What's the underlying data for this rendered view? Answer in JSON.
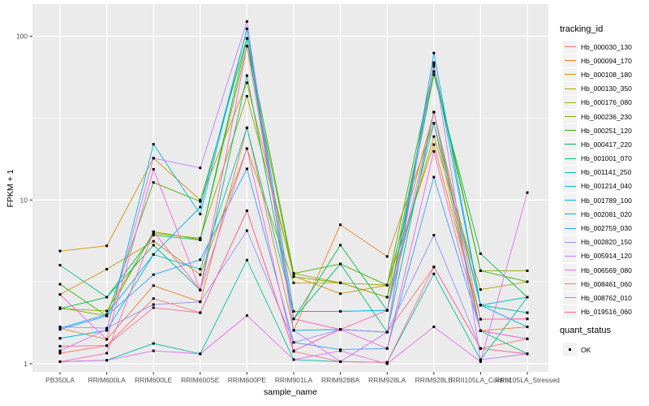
{
  "chart_data": {
    "type": "line",
    "xlabel": "sample_name",
    "ylabel": "FPKM + 1",
    "yscale": "log10",
    "yticks": [
      1,
      10,
      100
    ],
    "minor_yticks": [
      3.1623,
      31.623
    ],
    "grid": true,
    "legend_title": "tracking_id",
    "legend_position": "right",
    "panel_bg": "#EBEBEB",
    "grid_color": "#FFFFFF",
    "tick_label_color": "#4D4D4D",
    "tick_mark_color": "#333333",
    "point_color": "#000000",
    "point_shape": "square",
    "quant_status": {
      "title": "quant_status",
      "values": [
        "OK"
      ]
    },
    "x_categories": [
      "PB350LA",
      "RRIM600LA",
      "RRIM600LE",
      "RRIM600SE",
      "RRIM600PE",
      "RRIM901LA",
      "RRIM928BA",
      "RRIM928LA",
      "RRIM928LE",
      "RRII105LA_Control",
      "RRII105LA_Stressed"
    ],
    "series": [
      {
        "name": "Hb_000030_130",
        "color": "#F8766D",
        "values": [
          1.16,
          1.29,
          2.5,
          2.05,
          8.6,
          1.2,
          1.62,
          1.56,
          3.9,
          1.24,
          1.42
        ]
      },
      {
        "name": "Hb_000094_170",
        "color": "#EA8331",
        "values": [
          1.65,
          1.41,
          3.0,
          2.39,
          27.6,
          1.6,
          7.06,
          4.52,
          29.4,
          1.59,
          1.68
        ]
      },
      {
        "name": "Hb_000108_180",
        "color": "#D89000",
        "values": [
          4.88,
          5.25,
          18.0,
          10.0,
          52.0,
          3.43,
          2.68,
          3.02,
          21.8,
          1.87,
          1.88
        ]
      },
      {
        "name": "Hb_000130_350",
        "color": "#C09B00",
        "values": [
          2.65,
          3.78,
          5.6,
          3.5,
          20.6,
          3.12,
          3.12,
          2.55,
          24.4,
          2.84,
          3.17
        ]
      },
      {
        "name": "Hb_000176_080",
        "color": "#A3A500",
        "values": [
          2.17,
          2.1,
          6.25,
          5.85,
          43.0,
          3.56,
          3.12,
          3.02,
          34.4,
          2.28,
          2.05
        ]
      },
      {
        "name": "Hb_000236_230",
        "color": "#7CAE00",
        "values": [
          2.2,
          1.96,
          6.4,
          5.74,
          87.0,
          3.4,
          3.12,
          2.55,
          60.8,
          3.7,
          3.7
        ]
      },
      {
        "name": "Hb_000251_120",
        "color": "#39B600",
        "values": [
          3.06,
          1.96,
          12.8,
          9.8,
          97.0,
          3.56,
          4.07,
          3.02,
          65.5,
          3.7,
          3.17
        ]
      },
      {
        "name": "Hb_000417_220",
        "color": "#00BB4E",
        "values": [
          2.17,
          2.55,
          6.1,
          5.7,
          97.0,
          1.88,
          5.3,
          2.12,
          58.3,
          4.7,
          2.55
        ]
      },
      {
        "name": "Hb_001001_070",
        "color": "#00BF7D",
        "values": [
          4.0,
          2.55,
          5.3,
          2.82,
          57.5,
          1.88,
          4.07,
          1.56,
          34.4,
          1.59,
          1.15
        ]
      },
      {
        "name": "Hb_001141_250",
        "color": "#00C1A3",
        "values": [
          1.03,
          1.05,
          1.33,
          1.15,
          4.3,
          1.06,
          1.03,
          1.02,
          3.54,
          1.06,
          2.55
        ]
      },
      {
        "name": "Hb_001214_040",
        "color": "#00BFC4",
        "values": [
          1.43,
          1.6,
          4.65,
          3.78,
          27.6,
          2.09,
          2.09,
          2.12,
          29.4,
          2.28,
          2.55
        ]
      },
      {
        "name": "Hb_001789_100",
        "color": "#00BAE0",
        "values": [
          1.43,
          1.6,
          21.9,
          8.2,
          111.0,
          2.09,
          2.09,
          2.12,
          67.0,
          2.28,
          2.05
        ]
      },
      {
        "name": "Hb_002081_020",
        "color": "#00B0F6",
        "values": [
          1.65,
          2.0,
          4.65,
          9.05,
          111.0,
          1.6,
          1.62,
          1.56,
          79.0,
          2.28,
          1.68
        ]
      },
      {
        "name": "Hb_002759_030",
        "color": "#35A2FF",
        "values": [
          1.62,
          1.96,
          3.5,
          4.32,
          15.5,
          1.35,
          1.22,
          1.24,
          13.8,
          1.59,
          1.42
        ]
      },
      {
        "name": "Hb_002820_150",
        "color": "#9590FF",
        "values": [
          1.68,
          1.65,
          2.3,
          2.39,
          6.5,
          1.35,
          1.62,
          1.56,
          6.1,
          1.24,
          1.15
        ]
      },
      {
        "name": "Hb_005914_120",
        "color": "#C77CFF",
        "values": [
          1.2,
          1.62,
          18.0,
          15.7,
          123.0,
          1.6,
          1.03,
          1.56,
          69.0,
          1.06,
          1.15
        ]
      },
      {
        "name": "Hb_006569_080",
        "color": "#E76BF3",
        "values": [
          1.03,
          1.05,
          1.2,
          1.15,
          1.97,
          1.06,
          1.2,
          1.0,
          1.68,
          1.03,
          11.1
        ]
      },
      {
        "name": "Hb_008461_060",
        "color": "#FA62DB",
        "values": [
          2.65,
          1.41,
          15.4,
          2.82,
          20.6,
          1.2,
          1.62,
          1.24,
          19.8,
          1.59,
          1.42
        ]
      },
      {
        "name": "Hb_008762_010",
        "color": "#FF62BC",
        "values": [
          1.03,
          1.16,
          6.4,
          2.82,
          87.0,
          1.88,
          1.62,
          2.12,
          34.4,
          1.87,
          1.88
        ]
      },
      {
        "name": "Hb_019516_060",
        "color": "#FF6A98",
        "values": [
          1.28,
          1.29,
          2.2,
          2.05,
          8.6,
          1.19,
          1.03,
          1.02,
          3.9,
          1.24,
          1.15
        ]
      }
    ]
  }
}
